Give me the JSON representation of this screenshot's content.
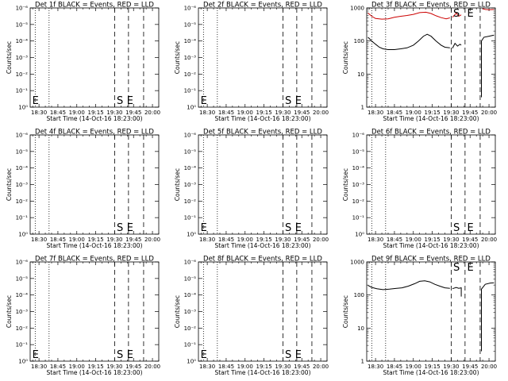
{
  "x_tick_labels": [
    "18:30",
    "18:45",
    "19:00",
    "19:15",
    "19:30",
    "19:45",
    "20:00"
  ],
  "x_label": "Start Time (14-Oct-16 18:23:00)",
  "y_label": "Counts/sec",
  "y_tick_labels_empty": [
    "10⁰",
    "10⁻¹",
    "10⁻²",
    "10⁻³",
    "10⁻⁴",
    "10⁻⁵",
    "10⁻⁶"
  ],
  "y_tick_labels_log": [
    "1",
    "10",
    "100",
    "1000"
  ],
  "colors": {
    "events": "#000000",
    "lld": "#cc0000"
  },
  "chart_data": [
    {
      "type": "line",
      "title": "Det 1f BLACK = Events, RED = LLD",
      "scale": "empty",
      "x_range": [
        "18:23",
        "20:05"
      ],
      "ylim": [
        1,
        1000000
      ],
      "dotted_lines": [
        "18:27",
        "18:38"
      ],
      "dashed_lines": [
        "19:30",
        "19:41",
        "19:53"
      ],
      "letters": [
        {
          "text": "E",
          "x": "18:24"
        },
        {
          "text": "S",
          "x": "19:31"
        },
        {
          "text": "E",
          "x": "19:39"
        }
      ],
      "series": []
    },
    {
      "type": "line",
      "title": "Det 2f BLACK = Events, RED = LLD",
      "scale": "empty",
      "x_range": [
        "18:23",
        "20:05"
      ],
      "ylim": [
        1,
        1000000
      ],
      "dotted_lines": [
        "18:27",
        "18:38"
      ],
      "dashed_lines": [
        "19:30",
        "19:41",
        "19:53"
      ],
      "letters": [
        {
          "text": "E",
          "x": "18:24"
        },
        {
          "text": "S",
          "x": "19:31"
        },
        {
          "text": "E",
          "x": "19:39"
        }
      ],
      "series": []
    },
    {
      "type": "line",
      "title": "Det 3f BLACK = Events, RED = LLD",
      "scale": "log",
      "x_range": [
        "18:23",
        "20:05"
      ],
      "ylim": [
        1,
        1000
      ],
      "dotted_lines": [
        "18:27",
        "18:38"
      ],
      "dashed_lines": [
        "19:30",
        "19:41",
        "19:53"
      ],
      "letters": [
        {
          "text": "S",
          "x": "19:31"
        },
        {
          "text": "E",
          "x": "19:42"
        }
      ],
      "series": [
        {
          "color": "#000000",
          "segments": [
            [
              [
                "18:24",
                130
              ],
              [
                "18:27",
                100
              ],
              [
                "18:30",
                80
              ],
              [
                "18:33",
                65
              ],
              [
                "18:36",
                58
              ],
              [
                "18:40",
                55
              ],
              [
                "18:45",
                55
              ],
              [
                "18:50",
                58
              ],
              [
                "18:55",
                62
              ],
              [
                "19:00",
                75
              ],
              [
                "19:04",
                100
              ],
              [
                "19:08",
                140
              ],
              [
                "19:11",
                160
              ],
              [
                "19:14",
                140
              ],
              [
                "19:18",
                100
              ],
              [
                "19:22",
                75
              ],
              [
                "19:25",
                65
              ],
              [
                "19:29",
                62
              ]
            ],
            [
              [
                "19:31",
                60
              ],
              [
                "19:33",
                85
              ],
              [
                "19:35",
                70
              ],
              [
                "19:37",
                80
              ],
              [
                "19:38",
                75
              ]
            ],
            [
              [
                "19:54",
                2
              ],
              [
                "19:54",
                100
              ],
              [
                "19:56",
                130
              ],
              [
                "20:00",
                140
              ],
              [
                "20:04",
                150
              ]
            ]
          ]
        },
        {
          "color": "#cc0000",
          "segments": [
            [
              [
                "18:24",
                700
              ],
              [
                "18:27",
                560
              ],
              [
                "18:30",
                480
              ],
              [
                "18:35",
                460
              ],
              [
                "18:40",
                470
              ],
              [
                "18:45",
                520
              ],
              [
                "18:50",
                560
              ],
              [
                "18:55",
                590
              ],
              [
                "19:00",
                640
              ],
              [
                "19:05",
                720
              ],
              [
                "19:10",
                740
              ],
              [
                "19:14",
                680
              ],
              [
                "19:18",
                580
              ],
              [
                "19:22",
                510
              ],
              [
                "19:26",
                470
              ],
              [
                "19:29",
                500
              ]
            ],
            [
              [
                "19:31",
                520
              ],
              [
                "19:34",
                700
              ],
              [
                "19:36",
                560
              ],
              [
                "19:38",
                620
              ]
            ],
            [
              [
                "19:55",
                950
              ],
              [
                "19:57",
                900
              ],
              [
                "20:00",
                880
              ],
              [
                "20:04",
                900
              ]
            ]
          ]
        }
      ]
    },
    {
      "type": "line",
      "title": "Det 4f BLACK = Events, RED = LLD",
      "scale": "empty",
      "x_range": [
        "18:23",
        "20:05"
      ],
      "ylim": [
        1,
        1000000
      ],
      "dotted_lines": [
        "18:27",
        "18:38"
      ],
      "dashed_lines": [
        "19:30",
        "19:41",
        "19:53"
      ],
      "letters": [
        {
          "text": "S",
          "x": "19:31"
        },
        {
          "text": "E",
          "x": "19:39"
        }
      ],
      "series": []
    },
    {
      "type": "line",
      "title": "Det 5f BLACK = Events, RED = LLD",
      "scale": "empty",
      "x_range": [
        "18:23",
        "20:05"
      ],
      "ylim": [
        1,
        1000000
      ],
      "dotted_lines": [
        "18:27",
        "18:38"
      ],
      "dashed_lines": [
        "19:30",
        "19:41",
        "19:53"
      ],
      "letters": [
        {
          "text": "E",
          "x": "18:24"
        },
        {
          "text": "S",
          "x": "19:31"
        },
        {
          "text": "E",
          "x": "19:39"
        }
      ],
      "series": []
    },
    {
      "type": "line",
      "title": "Det 6f BLACK = Events, RED = LLD",
      "scale": "empty",
      "x_range": [
        "18:23",
        "20:05"
      ],
      "ylim": [
        1,
        1000000
      ],
      "dotted_lines": [
        "18:27",
        "18:38"
      ],
      "dashed_lines": [
        "19:30",
        "19:41",
        "19:53"
      ],
      "letters": [
        {
          "text": "S",
          "x": "19:31"
        },
        {
          "text": "E",
          "x": "19:42"
        }
      ],
      "series": []
    },
    {
      "type": "line",
      "title": "Det 7f BLACK = Events, RED = LLD",
      "scale": "empty",
      "x_range": [
        "18:23",
        "20:05"
      ],
      "ylim": [
        1,
        1000000
      ],
      "dotted_lines": [
        "18:27",
        "18:38"
      ],
      "dashed_lines": [
        "19:30",
        "19:41",
        "19:53"
      ],
      "letters": [
        {
          "text": "E",
          "x": "18:24"
        },
        {
          "text": "S",
          "x": "19:31"
        },
        {
          "text": "E",
          "x": "19:39"
        }
      ],
      "series": []
    },
    {
      "type": "line",
      "title": "Det 8f BLACK = Events, RED = LLD",
      "scale": "empty",
      "x_range": [
        "18:23",
        "20:05"
      ],
      "ylim": [
        1,
        1000000
      ],
      "dotted_lines": [
        "18:27",
        "18:38"
      ],
      "dashed_lines": [
        "19:30",
        "19:41",
        "19:53"
      ],
      "letters": [
        {
          "text": "E",
          "x": "18:24"
        },
        {
          "text": "S",
          "x": "19:31"
        },
        {
          "text": "E",
          "x": "19:39"
        }
      ],
      "series": []
    },
    {
      "type": "line",
      "title": "Det 9f BLACK = Events, RED = LLD",
      "scale": "log",
      "x_range": [
        "18:23",
        "20:05"
      ],
      "ylim": [
        1,
        1000
      ],
      "dotted_lines": [
        "18:27",
        "18:38"
      ],
      "dashed_lines": [
        "19:30",
        "19:41",
        "19:53"
      ],
      "letters": [
        {
          "text": "S",
          "x": "19:31"
        },
        {
          "text": "E",
          "x": "19:42"
        }
      ],
      "series": [
        {
          "color": "#000000",
          "segments": [
            [
              [
                "18:24",
                195
              ],
              [
                "18:27",
                170
              ],
              [
                "18:31",
                155
              ],
              [
                "18:36",
                145
              ],
              [
                "18:41",
                150
              ],
              [
                "18:46",
                158
              ],
              [
                "18:51",
                165
              ],
              [
                "18:56",
                185
              ],
              [
                "19:01",
                220
              ],
              [
                "19:05",
                260
              ],
              [
                "19:09",
                270
              ],
              [
                "19:13",
                250
              ],
              [
                "19:17",
                210
              ],
              [
                "19:21",
                185
              ],
              [
                "19:25",
                165
              ],
              [
                "19:29",
                160
              ]
            ],
            [
              [
                "19:31",
                155
              ],
              [
                "19:34",
                170
              ],
              [
                "19:36",
                160
              ],
              [
                "19:38",
                165
              ],
              [
                "19:38",
                90
              ]
            ],
            [
              [
                "19:54",
                2
              ],
              [
                "19:54",
                150
              ],
              [
                "19:57",
                210
              ],
              [
                "20:01",
                230
              ],
              [
                "20:04",
                235
              ]
            ]
          ]
        }
      ]
    }
  ]
}
